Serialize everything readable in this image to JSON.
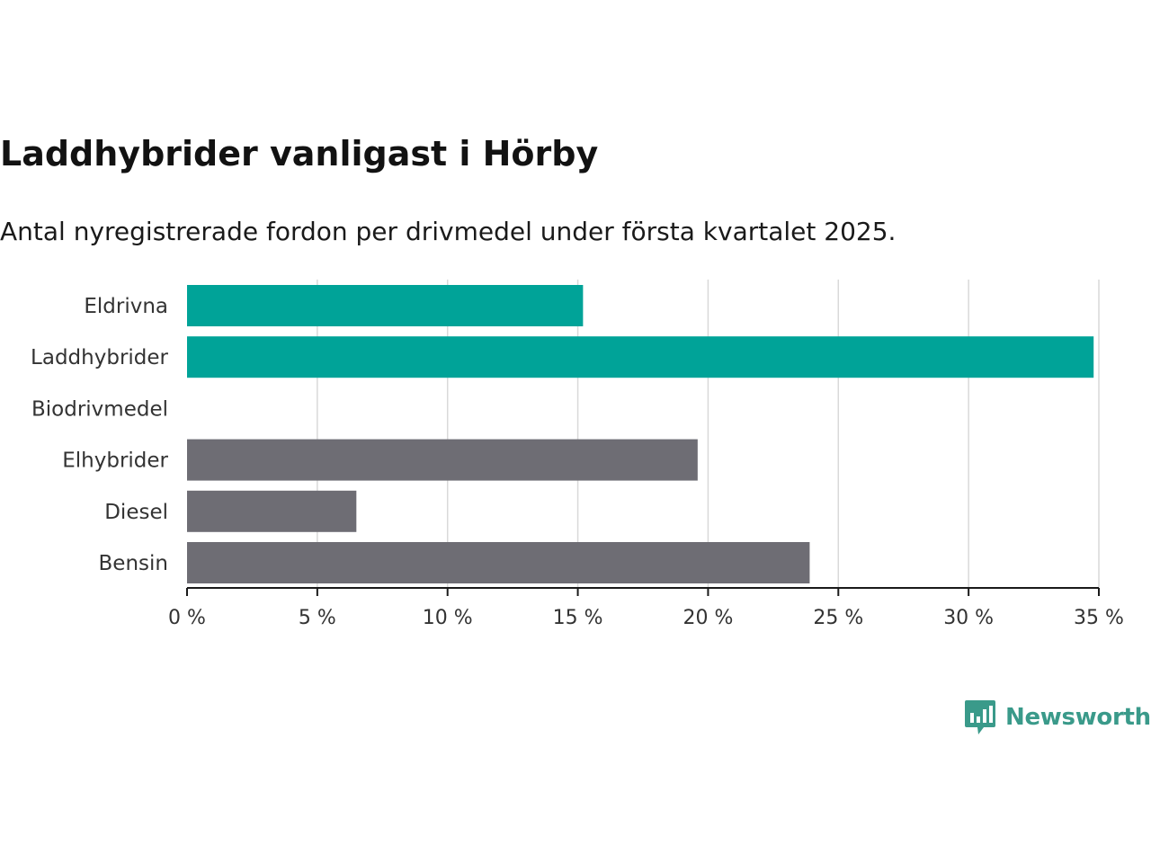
{
  "title": "Laddhybrider vanligast i Hörby",
  "subtitle": "Antal nyregistrerade fordon per drivmedel under första kvartalet 2025.",
  "brand": {
    "name": "Newsworthy",
    "icon": "bar-chart-speech-bubble-icon",
    "color": "#3a9a8a"
  },
  "colors": {
    "highlight": "#00a398",
    "default": "#6e6d74",
    "grid": "#d9d9d9",
    "axis": "#1a1a1a"
  },
  "chart_data": {
    "type": "bar",
    "orientation": "horizontal",
    "title": "Laddhybrider vanligast i Hörby",
    "subtitle": "Antal nyregistrerade fordon per drivmedel under första kvartalet 2025.",
    "xlabel": "",
    "ylabel": "",
    "categories": [
      "Eldrivna",
      "Laddhybrider",
      "Biodrivmedel",
      "Elhybrider",
      "Diesel",
      "Bensin"
    ],
    "values": [
      15.2,
      34.8,
      0,
      19.6,
      6.5,
      23.9
    ],
    "highlighted": [
      true,
      true,
      false,
      false,
      false,
      false
    ],
    "unit": "%",
    "xlim": [
      0,
      35
    ],
    "xticks": [
      0,
      5,
      10,
      15,
      20,
      25,
      30,
      35
    ],
    "xtick_labels": [
      "0 %",
      "5 %",
      "10 %",
      "15 %",
      "20 %",
      "25 %",
      "30 %",
      "35 %"
    ],
    "grid": true,
    "legend": "none"
  }
}
